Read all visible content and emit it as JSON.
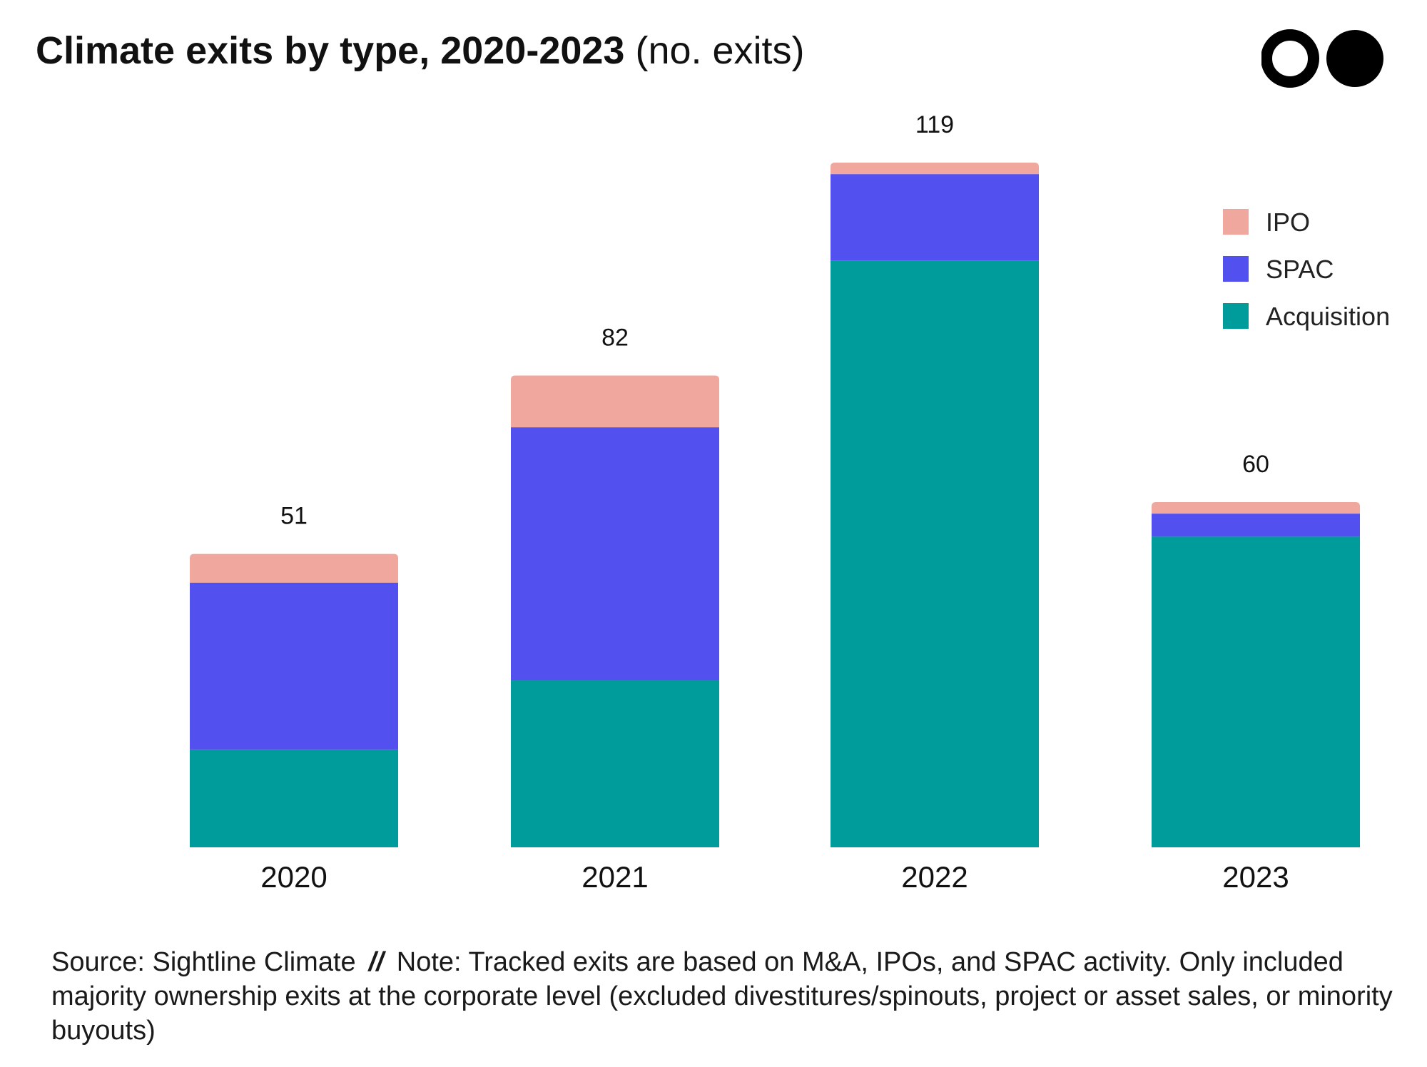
{
  "title": {
    "main": "Climate exits by type, 2020-2023",
    "unit": "(no. exits)"
  },
  "logo_name": "two-circles-logo",
  "chart_data": {
    "type": "bar",
    "stacked": true,
    "categories": [
      "2020",
      "2021",
      "2022",
      "2023"
    ],
    "series": [
      {
        "name": "Acquisition",
        "color": "#009b9b",
        "values": [
          17,
          29,
          102,
          54
        ]
      },
      {
        "name": "SPAC",
        "color": "#5250ee",
        "values": [
          29,
          44,
          15,
          4
        ]
      },
      {
        "name": "IPO",
        "color": "#f0a89e",
        "values": [
          5,
          9,
          2,
          2
        ]
      }
    ],
    "totals": [
      "51",
      "82",
      "119",
      "60"
    ],
    "legend": [
      "IPO",
      "SPAC",
      "Acquisition"
    ],
    "legend_position": "top-right",
    "ylim": [
      0,
      119
    ],
    "grid": false
  },
  "footer": {
    "source": "Source: Sightline Climate",
    "separator": "//",
    "note": "Note: Tracked exits are based on M&A, IPOs, and SPAC activity. Only included majority ownership exits at the corporate level (excluded divestitures/spinouts, project or asset sales, or minority buyouts)"
  }
}
